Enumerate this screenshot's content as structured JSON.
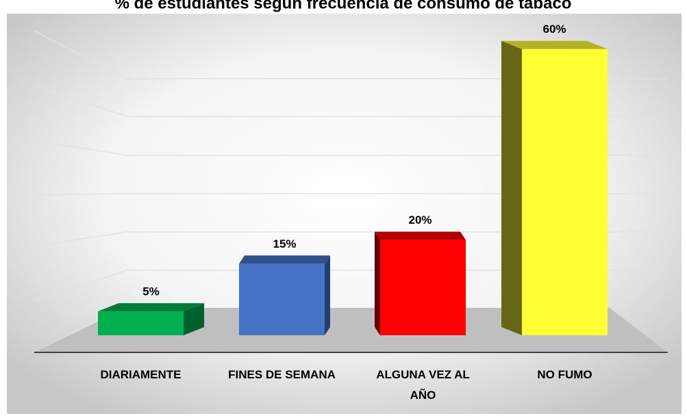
{
  "chart_data": {
    "type": "bar3d",
    "title": "% de estudiantes según frecuencia de consumo de tabaco",
    "categories": [
      "DIARIAMENTE",
      "FINES DE SEMANA",
      "ALGUNA VEZ AL AÑO",
      "NO FUMO"
    ],
    "values": [
      5,
      15,
      20,
      60
    ],
    "value_labels": [
      "5%",
      "15%",
      "20%",
      "60%"
    ],
    "colors": [
      "#00b050",
      "#4472c4",
      "#ff0000",
      "#ffff33"
    ],
    "ylim": [
      0,
      70
    ]
  }
}
